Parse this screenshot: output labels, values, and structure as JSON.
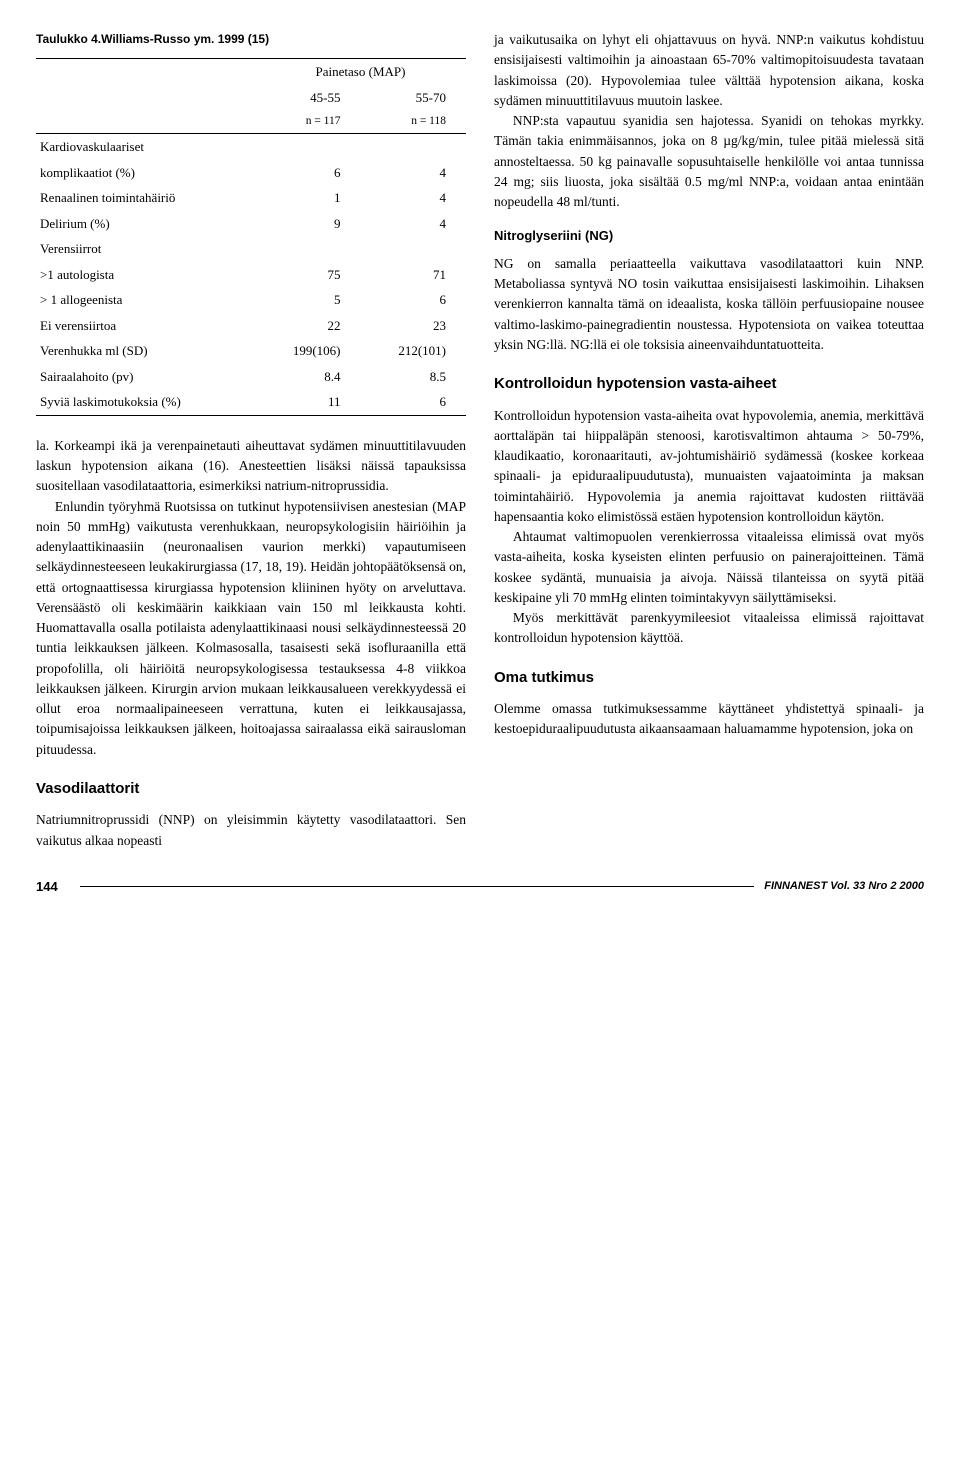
{
  "table": {
    "title": "Taulukko 4.Williams-Russo ym. 1999 (15)",
    "header_group": "Painetaso (MAP)",
    "col1": "45-55",
    "col2": "55-70",
    "n1": "n = 117",
    "n2": "n = 118",
    "rows": [
      {
        "label": "Kardiovaskulaariset",
        "v1": "",
        "v2": ""
      },
      {
        "label": "komplikaatiot (%)",
        "v1": "6",
        "v2": "4"
      },
      {
        "label": "Renaalinen toimintahäiriö",
        "v1": "1",
        "v2": "4"
      },
      {
        "label": "Delirium (%)",
        "v1": "9",
        "v2": "4"
      },
      {
        "label": "Verensiirrot",
        "v1": "",
        "v2": ""
      },
      {
        "label": ">1 autologista",
        "v1": "75",
        "v2": "71"
      },
      {
        "label": "> 1 allogeenista",
        "v1": "5",
        "v2": "6"
      },
      {
        "label": "Ei verensiirtoa",
        "v1": "22",
        "v2": "23"
      },
      {
        "label": "Verenhukka ml (SD)",
        "v1": "199(106)",
        "v2": "212(101)"
      },
      {
        "label": "Sairaalahoito (pv)",
        "v1": "8.4",
        "v2": "8.5"
      },
      {
        "label": "Syviä laskimotukoksia (%)",
        "v1": "11",
        "v2": "6"
      }
    ]
  },
  "left": {
    "p1": "la. Korkeampi ikä ja verenpainetauti aiheuttavat sydämen minuuttitilavuuden laskun hypotension aikana (16). Anesteettien lisäksi näissä tapauksissa suositellaan vasodilataattoria, esimerkiksi natrium-nitroprussidia.",
    "p2": "Enlundin työryhmä Ruotsissa on tutkinut hypotensiivisen anestesian (MAP noin 50 mmHg) vaikutusta verenhukkaan, neuropsykologisiin häiriöihin ja adenylaattikinaasiin (neuronaalisen vaurion merkki) vapautumiseen selkäydinnesteeseen leukakirurgiassa (17, 18, 19). Heidän johtopäätöksensä on, että ortognaattisessa kirurgiassa hypotension kliininen hyöty on arveluttava. Verensäästö oli keskimäärin kaikkiaan vain 150 ml leikkausta kohti. Huomattavalla osalla potilaista adenylaattikinaasi nousi selkäydinnesteessä 20 tuntia leikkauksen jälkeen. Kolmasosalla, tasaisesti sekä isofluraanilla että propofolilla, oli häiriöitä neuropsykologisessa testauksessa 4-8 viikkoa leikkauksen jälkeen. Kirurgin arvion mukaan leikkausalueen verekkyydessä ei ollut eroa normaalipaineeseen verrattuna, kuten ei leikkausajassa, toipumisajoissa leikkauksen jälkeen, hoitoajassa sairaalassa eikä sairausloman pituudessa.",
    "h_vaso": "Vasodilaattorit",
    "p3": "Natriumnitroprussidi (NNP) on yleisimmin käytetty vasodilataattori. Sen vaikutus alkaa nopeasti"
  },
  "right": {
    "p1": "ja vaikutusaika on lyhyt eli ohjattavuus on hyvä. NNP:n vaikutus kohdistuu ensisijaisesti valtimoihin ja ainoastaan 65-70% valtimopitoisuudesta tavataan laskimoissa (20). Hypovolemiaa tulee välttää hypotension aikana, koska sydämen minuuttitilavuus muutoin laskee.",
    "p2": "NNP:sta vapautuu syanidia sen hajotessa. Syanidi on tehokas myrkky. Tämän takia enimmäisannos, joka on 8 µg/kg/min, tulee pitää mielessä sitä annosteltaessa. 50 kg painavalle sopusuhtaiselle henkilölle voi antaa tunnissa 24 mg; siis liuosta, joka sisältää 0.5 mg/ml NNP:a, voidaan antaa enintään nopeudella 48 ml/tunti.",
    "h_ng": "Nitroglyseriini (NG)",
    "p3": "NG on samalla periaatteella vaikuttava vasodilataattori kuin NNP. Metaboliassa syntyvä NO tosin vaikuttaa ensisijaisesti laskimoihin. Lihaksen verenkierron kannalta tämä on ideaalista, koska tällöin perfuusiopaine nousee valtimo-laskimo-painegradientin noustessa. Hypotensiota on vaikea toteuttaa yksin NG:llä. NG:llä ei ole toksisia aineenvaihduntatuotteita.",
    "h_kontra": "Kontrolloidun hypotension vasta-aiheet",
    "p4": "Kontrolloidun hypotension vasta-aiheita ovat hypovolemia, anemia, merkittävä aorttaläpän tai hiippaläpän stenoosi, karotisvaltimon ahtauma > 50-79%, klaudikaatio, koronaaritauti, av-johtumishäiriö sydämessä (koskee korkeaa spinaali- ja epiduraalipuudutusta), munuaisten vajaatoiminta ja maksan toimintahäiriö. Hypovolemia ja anemia rajoittavat kudosten riittävää hapensaantia koko elimistössä estäen hypotension kontrolloidun käytön.",
    "p5": "Ahtaumat valtimopuolen verenkierrossa vitaaleissa elimissä ovat myös vasta-aiheita, koska kyseisten elinten perfuusio on painerajoitteinen. Tämä koskee sydäntä, munuaisia ja aivoja. Näissä tilanteissa on syytä pitää keskipaine yli 70 mmHg elinten toimintakyvyn säilyttämiseksi.",
    "p6": "Myös merkittävät parenkyymileesiot vitaaleissa elimissä rajoittavat kontrolloidun hypotension käyttöä.",
    "h_oma": "Oma tutkimus",
    "p7": "Olemme omassa tutkimuksessamme käyttäneet yhdistettyä spinaali- ja kestoepiduraalipuudutusta aikaansaamaan haluamamme hypotension, joka on"
  },
  "footer": {
    "page": "144",
    "journal": "FINNANEST Vol. 33 Nro 2 2000"
  }
}
